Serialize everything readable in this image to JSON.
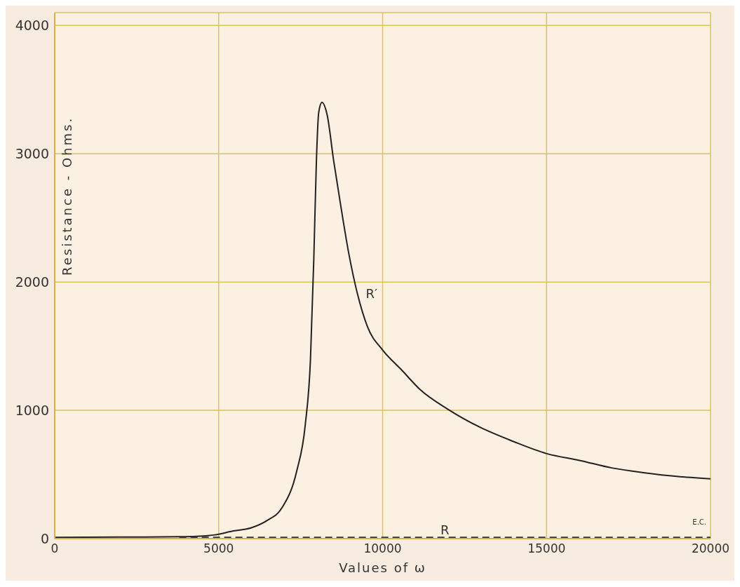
{
  "chart_data": {
    "type": "line",
    "xlabel": "Values of ω",
    "ylabel": "Resistance - Ohms.",
    "xlim": [
      0,
      20000
    ],
    "ylim": [
      0,
      4100
    ],
    "xticks": [
      0,
      5000,
      10000,
      15000,
      20000
    ],
    "yticks": [
      0,
      1000,
      2000,
      3000,
      4000
    ],
    "grid": true,
    "marker": "none",
    "series": [
      {
        "name": "R′",
        "color": "#222222",
        "line_style": "solid",
        "x": [
          0,
          2000,
          4000,
          4850,
          5450,
          6000,
          6470,
          6930,
          7380,
          7640,
          7800,
          7900,
          7980,
          8050,
          8150,
          8310,
          8510,
          8720,
          8970,
          9230,
          9540,
          10000,
          10560,
          11150,
          12000,
          12970,
          14000,
          15010,
          16000,
          17010,
          18000,
          18970,
          20000
        ],
        "values": [
          10,
          12,
          15,
          28,
          60,
          85,
          140,
          240,
          526,
          885,
          1400,
          2170,
          2940,
          3320,
          3400,
          3300,
          2940,
          2600,
          2220,
          1910,
          1650,
          1470,
          1320,
          1160,
          1007,
          868,
          756,
          662,
          610,
          550,
          513,
          485,
          466
        ]
      },
      {
        "name": "R",
        "color": "#333333",
        "line_style": "dashed",
        "x": [
          3800,
          20000
        ],
        "values": [
          10,
          10
        ]
      }
    ],
    "annotations": [
      "E.C."
    ]
  }
}
